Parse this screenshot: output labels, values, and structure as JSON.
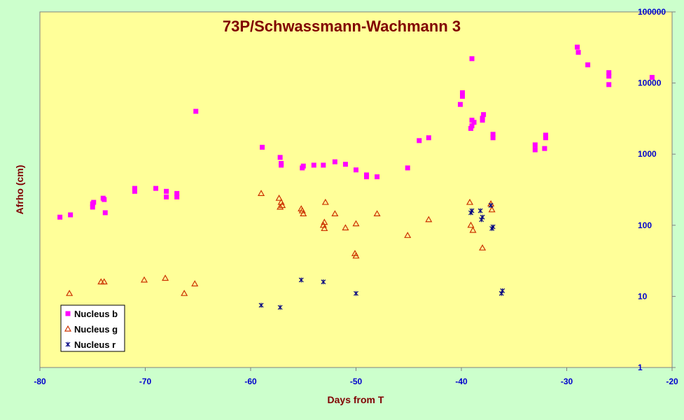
{
  "chart_data": {
    "type": "scatter",
    "title": "73P/Schwassmann-Wachmann 3",
    "xlabel": "Days from T",
    "ylabel": "Afrho (cm)",
    "xlim": [
      -80,
      -20
    ],
    "ylim": [
      1,
      100000
    ],
    "y_scale": "log",
    "grid": false,
    "legend_position": "bottom-left",
    "x_ticks": [
      "-80",
      "-70",
      "-60",
      "-50",
      "-40",
      "-30",
      "-20"
    ],
    "y_ticks": [
      "1",
      "10",
      "100",
      "1000",
      "10000",
      "100000"
    ],
    "colors": {
      "background": "#ccffcc",
      "plot_area": "#ffff99",
      "title": "#800000",
      "ticks": "#0000cc",
      "nucleus_b": "#ff00ff",
      "nucleus_g": "#cc3300",
      "nucleus_r": "#000080"
    },
    "series": [
      {
        "name": "Nucleus b",
        "marker": "square",
        "x": [
          -78.1,
          -77.1,
          -75.0,
          -75.0,
          -74.9,
          -74.0,
          -73.9,
          -73.8,
          -71.0,
          -71.0,
          -69.0,
          -68.0,
          -68.0,
          -67.0,
          -67.0,
          -65.2,
          -58.9,
          -57.2,
          -57.1,
          -57.1,
          -55.1,
          -55.0,
          -54.0,
          -53.1,
          -52.0,
          -51.0,
          -50.0,
          -49.0,
          -49.0,
          -48.0,
          -45.1,
          -44.0,
          -43.1,
          -40.1,
          -39.9,
          -39.9,
          -39.1,
          -39.0,
          -39.0,
          -39.0,
          -38.8,
          -38.0,
          -38.0,
          -37.9,
          -37.0,
          -37.0,
          -33.0,
          -33.0,
          -32.1,
          -32.0,
          -32.0,
          -29.0,
          -28.9,
          -28.0,
          -26.0,
          -26.0,
          -26.0,
          -21.9
        ],
        "y": [
          130,
          140,
          180,
          200,
          210,
          240,
          230,
          150,
          300,
          330,
          330,
          300,
          250,
          250,
          280,
          4000,
          1250,
          900,
          700,
          740,
          640,
          680,
          700,
          700,
          780,
          720,
          600,
          480,
          510,
          480,
          640,
          1550,
          1700,
          5000,
          6500,
          7300,
          2300,
          2500,
          3000,
          22000,
          2800,
          3000,
          3200,
          3600,
          1700,
          1900,
          1150,
          1350,
          1200,
          1700,
          1850,
          32000,
          27000,
          18000,
          9500,
          12500,
          14000,
          12000
        ]
      },
      {
        "name": "Nucleus g",
        "marker": "triangle",
        "x": [
          -77.2,
          -74.2,
          -73.9,
          -70.1,
          -68.1,
          -66.3,
          -65.3,
          -59.0,
          -57.3,
          -57.2,
          -57.1,
          -57.0,
          -55.2,
          -55.1,
          -55.0,
          -53.1,
          -53.0,
          -53.0,
          -52.9,
          -52.0,
          -51.0,
          -50.1,
          -50.0,
          -50.0,
          -48.0,
          -45.1,
          -43.1,
          -39.2,
          -39.1,
          -38.9,
          -38.0,
          -37.2,
          -37.1
        ],
        "y": [
          11,
          16,
          16,
          17,
          18,
          11,
          15,
          280,
          240,
          180,
          210,
          190,
          170,
          160,
          145,
          100,
          110,
          90,
          210,
          145,
          92,
          40,
          37,
          105,
          145,
          72,
          120,
          210,
          100,
          85,
          48,
          200,
          165
        ]
      },
      {
        "name": "Nucleus r",
        "marker": "star",
        "x": [
          -59.0,
          -57.2,
          -55.2,
          -53.1,
          -50.0,
          -39.1,
          -39.0,
          -38.2,
          -38.1,
          -38.0,
          -37.2,
          -37.1,
          -37.0,
          -36.2,
          -36.1
        ],
        "y": [
          7.5,
          7.0,
          17,
          16,
          11,
          150,
          160,
          160,
          120,
          130,
          190,
          90,
          95,
          11,
          12
        ]
      }
    ]
  }
}
